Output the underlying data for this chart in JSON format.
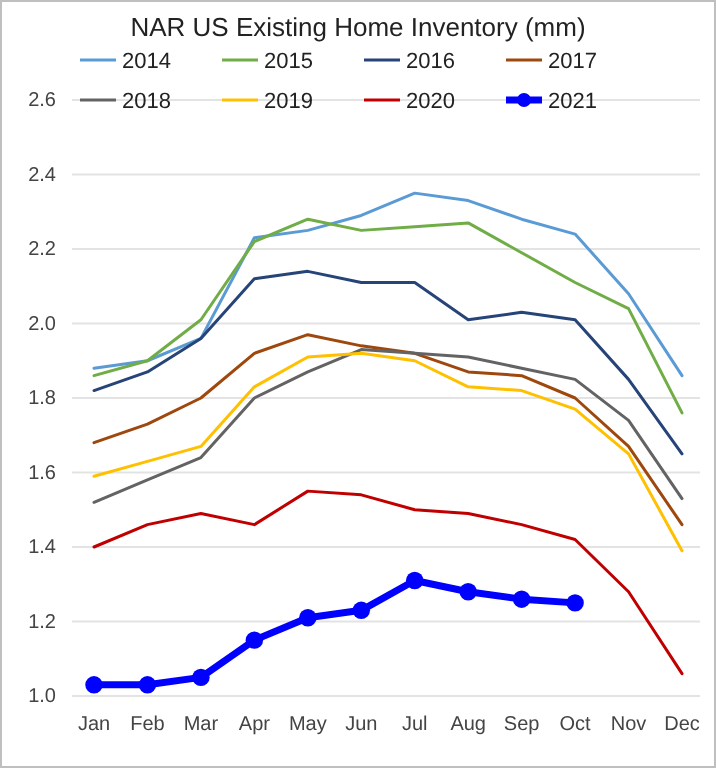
{
  "chart_data": {
    "type": "line",
    "title": "NAR US Existing Home Inventory (mm)",
    "categories": [
      "Jan",
      "Feb",
      "Mar",
      "Apr",
      "May",
      "Jun",
      "Jul",
      "Aug",
      "Sep",
      "Oct",
      "Nov",
      "Dec"
    ],
    "series": [
      {
        "name": "2014",
        "color": "#5b9bd5",
        "values": [
          1.88,
          1.9,
          1.96,
          2.23,
          2.25,
          2.29,
          2.35,
          2.33,
          2.28,
          2.24,
          2.08,
          1.86
        ]
      },
      {
        "name": "2015",
        "color": "#70ad47",
        "values": [
          1.86,
          1.9,
          2.01,
          2.22,
          2.28,
          2.25,
          2.26,
          2.27,
          2.19,
          2.11,
          2.04,
          1.76
        ]
      },
      {
        "name": "2016",
        "color": "#264478",
        "values": [
          1.82,
          1.87,
          1.96,
          2.12,
          2.14,
          2.11,
          2.11,
          2.01,
          2.03,
          2.01,
          1.85,
          1.65
        ]
      },
      {
        "name": "2017",
        "color": "#9e480e",
        "values": [
          1.68,
          1.73,
          1.8,
          1.92,
          1.97,
          1.94,
          1.92,
          1.87,
          1.86,
          1.8,
          1.67,
          1.46
        ]
      },
      {
        "name": "2018",
        "color": "#636363",
        "values": [
          1.52,
          1.58,
          1.64,
          1.8,
          1.87,
          1.93,
          1.92,
          1.91,
          1.88,
          1.85,
          1.74,
          1.53
        ]
      },
      {
        "name": "2019",
        "color": "#ffc000",
        "values": [
          1.59,
          1.63,
          1.67,
          1.83,
          1.91,
          1.92,
          1.9,
          1.83,
          1.82,
          1.77,
          1.65,
          1.39
        ]
      },
      {
        "name": "2020",
        "color": "#c00000",
        "values": [
          1.4,
          1.46,
          1.49,
          1.46,
          1.55,
          1.54,
          1.5,
          1.49,
          1.46,
          1.42,
          1.28,
          1.06
        ]
      },
      {
        "name": "2021",
        "color": "#0000ff",
        "marker": "circle",
        "values": [
          1.03,
          1.03,
          1.05,
          1.15,
          1.21,
          1.23,
          1.31,
          1.28,
          1.26,
          1.25,
          null,
          null
        ]
      }
    ],
    "ylim": [
      1.0,
      2.6
    ],
    "yticks": [
      {
        "value": 1,
        "label": "1.0"
      },
      1.2,
      1.4,
      1.6,
      1.8,
      {
        "value": 2,
        "label": "2.0"
      },
      2.2,
      2.4,
      2.6
    ],
    "grid": "y",
    "legend": "top"
  }
}
